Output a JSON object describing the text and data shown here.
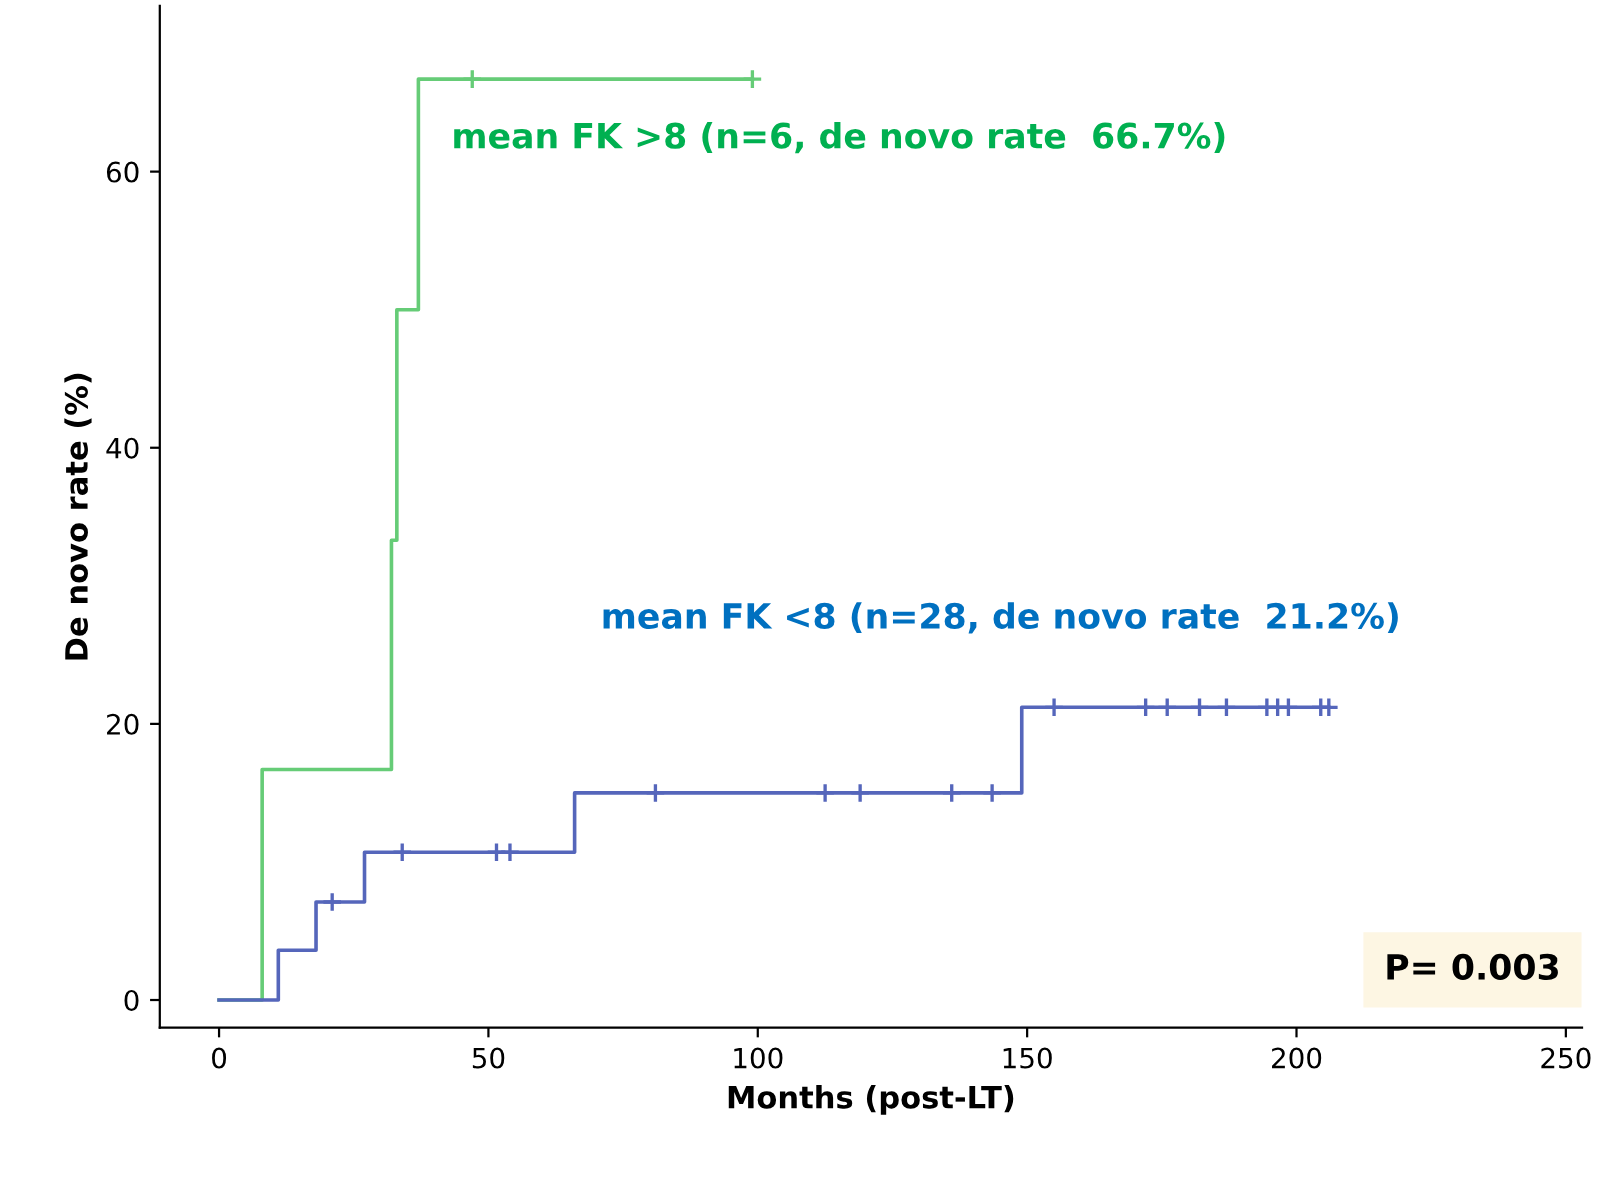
{
  "chart_data": {
    "type": "step",
    "xlabel": "Months (post-LT)",
    "ylabel": "De novo rate (%)",
    "xlim": [
      -11,
      253
    ],
    "ylim": [
      -2,
      72
    ],
    "xticks": [
      0,
      50,
      100,
      150,
      200,
      250
    ],
    "yticks": [
      0,
      20,
      40,
      60
    ],
    "grid": false,
    "legend": false,
    "marker": "none",
    "line_style": "solid",
    "series": [
      {
        "name": "mean FK >8 (n=6, de novo rate  66.7%)",
        "color": "#66cc77",
        "x": [
          0,
          8,
          32,
          33,
          37,
          99
        ],
        "values": [
          0,
          16.7,
          33.3,
          50,
          66.7,
          66.7
        ]
      },
      {
        "name": "mean FK <8 (n=28, de novo rate  21.2%)",
        "color": "#5566bb",
        "x": [
          0,
          11,
          18,
          27,
          66,
          149,
          206
        ],
        "values": [
          0,
          3.6,
          7.1,
          10.7,
          15.0,
          21.2,
          21.2
        ]
      },
      {
        "type": "scatter",
        "marker": "cross",
        "color": "#66cc77",
        "x": [
          47,
          99
        ],
        "values": [
          66.7,
          66.7
        ]
      },
      {
        "type": "scatter",
        "marker": "cross",
        "color": "#5566bb",
        "x": [
          21,
          34,
          51.5,
          54,
          81,
          112.5,
          119,
          136,
          143.5,
          155,
          172,
          176,
          182,
          187,
          194.5,
          196.5,
          198.5,
          204.5,
          206
        ],
        "values": [
          7.1,
          10.7,
          10.7,
          10.7,
          15.0,
          15.0,
          15.0,
          15.0,
          15.0,
          21.2,
          21.2,
          21.2,
          21.2,
          21.2,
          21.2,
          21.2,
          21.2,
          21.2,
          21.2
        ]
      }
    ],
    "annotations": [
      "P= 0.003"
    ]
  }
}
